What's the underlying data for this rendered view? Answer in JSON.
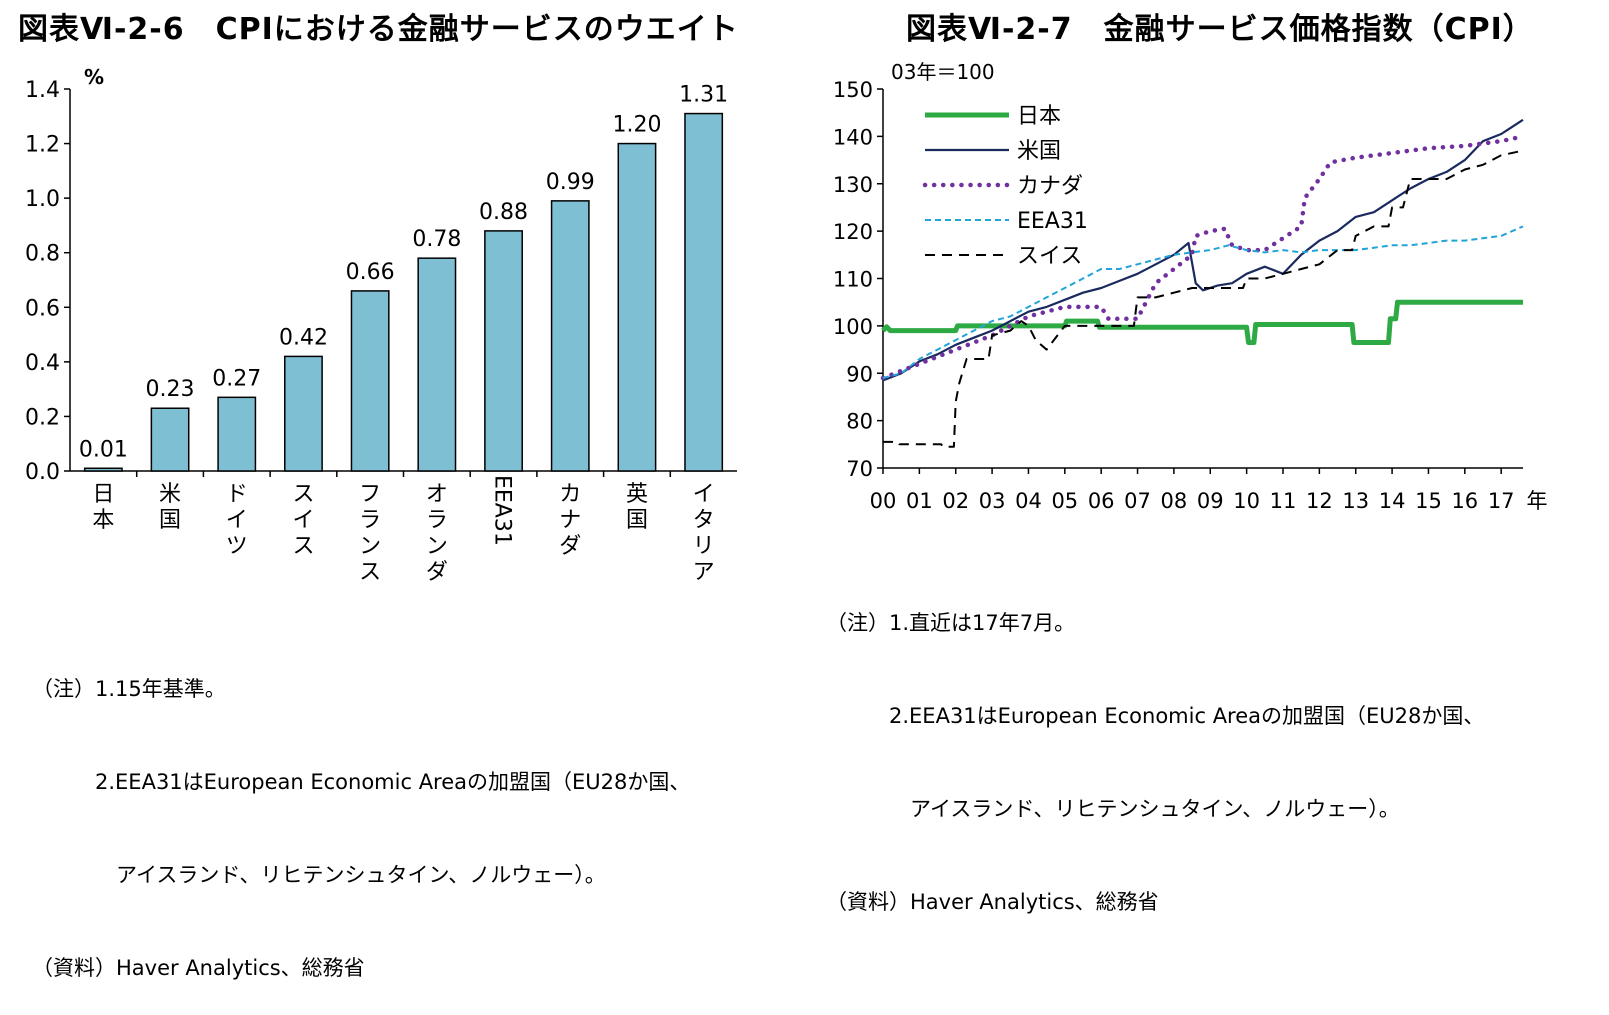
{
  "left": {
    "title": "図表Ⅵ-2-6　CPIにおける金融サービスのウエイト",
    "notes": [
      "（注）1.15年基準。",
      "　　　2.EEA31はEuropean Economic Areaの加盟国（EU28か国、",
      "　　　　アイスランド、リヒテンシュタイン、ノルウェー）。",
      "（資料）Haver Analytics、総務省"
    ]
  },
  "right": {
    "title": "図表Ⅵ-2-7　金融サービス価格指数（CPI）",
    "notes": [
      "（注）1.直近は17年7月。",
      "　　　2.EEA31はEuropean Economic Areaの加盟国（EU28か国、",
      "　　　　アイスランド、リヒテンシュタイン、ノルウェー）。",
      "（資料）Haver Analytics、総務省"
    ]
  },
  "chart_data": [
    {
      "type": "bar",
      "title": "CPIにおける金融サービスのウエイト",
      "ylabel": "%",
      "ylim": [
        0,
        1.4
      ],
      "yticks": [
        0.0,
        0.2,
        0.4,
        0.6,
        0.8,
        1.0,
        1.2,
        1.4
      ],
      "ytick_labels": [
        "0.0",
        "0.2",
        "0.4",
        "0.6",
        "0.8",
        "1.0",
        "1.2",
        "1.4"
      ],
      "categories": [
        "日本",
        "米国",
        "ドイツ",
        "スイス",
        "フランス",
        "オランダ",
        "EEA31",
        "カナダ",
        "英国",
        "イタリア"
      ],
      "values": [
        0.01,
        0.23,
        0.27,
        0.42,
        0.66,
        0.78,
        0.88,
        0.99,
        1.2,
        1.31
      ],
      "value_labels": [
        "0.01",
        "0.23",
        "0.27",
        "0.42",
        "0.66",
        "0.78",
        "0.88",
        "0.99",
        "1.20",
        "1.31"
      ],
      "bar_color": "#7fbfd4"
    },
    {
      "type": "line",
      "title": "金融サービス価格指数（CPI）",
      "ylabel": "03年＝100",
      "xlabel": "年",
      "ylim": [
        70,
        150
      ],
      "yticks": [
        70,
        80,
        90,
        100,
        110,
        120,
        130,
        140,
        150
      ],
      "xlim": [
        0,
        17.6
      ],
      "xticks": [
        0,
        1,
        2,
        3,
        4,
        5,
        6,
        7,
        8,
        9,
        10,
        11,
        12,
        13,
        14,
        15,
        16,
        17
      ],
      "xtick_labels": [
        "00",
        "01",
        "02",
        "03",
        "04",
        "05",
        "06",
        "07",
        "08",
        "09",
        "10",
        "11",
        "12",
        "13",
        "14",
        "15",
        "16",
        "17"
      ],
      "series": [
        {
          "name": "日本",
          "color": "#2eaa45",
          "style": "solid-thick",
          "points": [
            [
              0,
              99
            ],
            [
              0.1,
              99.8
            ],
            [
              0.2,
              99
            ],
            [
              2,
              99
            ],
            [
              2.05,
              100
            ],
            [
              3,
              100
            ],
            [
              5,
              100
            ],
            [
              5.05,
              101
            ],
            [
              5.9,
              101
            ],
            [
              5.95,
              99.7
            ],
            [
              10,
              99.7
            ],
            [
              10.05,
              96.5
            ],
            [
              10.2,
              96.5
            ],
            [
              10.25,
              100.3
            ],
            [
              12.9,
              100.3
            ],
            [
              12.95,
              96.5
            ],
            [
              13.9,
              96.5
            ],
            [
              13.95,
              101.5
            ],
            [
              14.1,
              101.5
            ],
            [
              14.15,
              105
            ],
            [
              17.6,
              105
            ]
          ]
        },
        {
          "name": "米国",
          "color": "#1a2a5e",
          "style": "solid",
          "points": [
            [
              0,
              88.5
            ],
            [
              0.5,
              90
            ],
            [
              1,
              92.5
            ],
            [
              1.5,
              94
            ],
            [
              2,
              96
            ],
            [
              2.5,
              97.5
            ],
            [
              3,
              99
            ],
            [
              3.5,
              101
            ],
            [
              4,
              103
            ],
            [
              4.5,
              104
            ],
            [
              5,
              105.5
            ],
            [
              5.5,
              107
            ],
            [
              6,
              108
            ],
            [
              6.5,
              109.5
            ],
            [
              7,
              111
            ],
            [
              7.5,
              113
            ],
            [
              8,
              115
            ],
            [
              8.4,
              117.5
            ],
            [
              8.6,
              109
            ],
            [
              8.8,
              107.5
            ],
            [
              9.2,
              108.5
            ],
            [
              9.6,
              109
            ],
            [
              10,
              111
            ],
            [
              10.5,
              112.5
            ],
            [
              11,
              111
            ],
            [
              11.5,
              115
            ],
            [
              12,
              118
            ],
            [
              12.5,
              120
            ],
            [
              13,
              123
            ],
            [
              13.5,
              124
            ],
            [
              14,
              126.5
            ],
            [
              14.5,
              129
            ],
            [
              15,
              131
            ],
            [
              15.5,
              132.5
            ],
            [
              16,
              135
            ],
            [
              16.5,
              139
            ],
            [
              17,
              140.5
            ],
            [
              17.3,
              142
            ],
            [
              17.6,
              143.5
            ]
          ]
        },
        {
          "name": "カナダ",
          "color": "#7030a0",
          "style": "dotted",
          "points": [
            [
              0,
              89
            ],
            [
              1,
              92
            ],
            [
              2,
              95
            ],
            [
              3,
              98
            ],
            [
              4,
              102
            ],
            [
              5,
              104
            ],
            [
              6,
              104
            ],
            [
              6.2,
              101.5
            ],
            [
              7,
              101.5
            ],
            [
              7.5,
              109
            ],
            [
              8,
              112
            ],
            [
              8.5,
              115
            ],
            [
              8.6,
              119
            ],
            [
              9,
              120
            ],
            [
              9.4,
              120.5
            ],
            [
              9.6,
              117
            ],
            [
              10,
              116
            ],
            [
              10.5,
              116
            ],
            [
              11,
              118.5
            ],
            [
              11.5,
              121
            ],
            [
              11.6,
              127
            ],
            [
              12,
              131
            ],
            [
              12.3,
              134.5
            ],
            [
              13,
              135.5
            ],
            [
              14,
              136.5
            ],
            [
              15,
              137.5
            ],
            [
              16,
              138
            ],
            [
              17,
              139
            ],
            [
              17.6,
              140
            ]
          ]
        },
        {
          "name": "EEA31",
          "color": "#22a4d9",
          "style": "dashed-fine",
          "points": [
            [
              0,
              89
            ],
            [
              0.5,
              90
            ],
            [
              1,
              93
            ],
            [
              1.5,
              95
            ],
            [
              2,
              97
            ],
            [
              2.5,
              99
            ],
            [
              3,
              101
            ],
            [
              3.5,
              102
            ],
            [
              4,
              104
            ],
            [
              4.5,
              106
            ],
            [
              5,
              108
            ],
            [
              5.5,
              110
            ],
            [
              6,
              112
            ],
            [
              6.5,
              112
            ],
            [
              7,
              113
            ],
            [
              7.5,
              114
            ],
            [
              8,
              115
            ],
            [
              8.5,
              115.5
            ],
            [
              9,
              116
            ],
            [
              9.5,
              117
            ],
            [
              10,
              116
            ],
            [
              10.5,
              115.5
            ],
            [
              11,
              116
            ],
            [
              11.5,
              115.5
            ],
            [
              12,
              116
            ],
            [
              12.5,
              116
            ],
            [
              13,
              116
            ],
            [
              13.5,
              116.5
            ],
            [
              14,
              117
            ],
            [
              14.5,
              117
            ],
            [
              15,
              117.5
            ],
            [
              15.5,
              118
            ],
            [
              16,
              118
            ],
            [
              16.5,
              118.5
            ],
            [
              17,
              119
            ],
            [
              17.6,
              121
            ]
          ]
        },
        {
          "name": "スイス",
          "color": "#000000",
          "style": "dashed",
          "points": [
            [
              0,
              75.5
            ],
            [
              0.4,
              75.5
            ],
            [
              0.45,
              75
            ],
            [
              1.6,
              75
            ],
            [
              1.65,
              74.5
            ],
            [
              1.95,
              74.5
            ],
            [
              2,
              84
            ],
            [
              2.1,
              88
            ],
            [
              2.3,
              93
            ],
            [
              2.9,
              93
            ],
            [
              3,
              98
            ],
            [
              3.5,
              99
            ],
            [
              3.8,
              101
            ],
            [
              4,
              100
            ],
            [
              4.2,
              97
            ],
            [
              4.5,
              95
            ],
            [
              5,
              100
            ],
            [
              5.5,
              100
            ],
            [
              6,
              100
            ],
            [
              6.5,
              100
            ],
            [
              6.9,
              100
            ],
            [
              7,
              106
            ],
            [
              7.5,
              106
            ],
            [
              8,
              107
            ],
            [
              8.5,
              108
            ],
            [
              9,
              108
            ],
            [
              9.5,
              108
            ],
            [
              9.9,
              108
            ],
            [
              10,
              110
            ],
            [
              10.5,
              110
            ],
            [
              11,
              111
            ],
            [
              11.5,
              112
            ],
            [
              12,
              113
            ],
            [
              12.5,
              116
            ],
            [
              12.9,
              116
            ],
            [
              13,
              119
            ],
            [
              13.5,
              121
            ],
            [
              13.9,
              121
            ],
            [
              14,
              125
            ],
            [
              14.3,
              125
            ],
            [
              14.5,
              131
            ],
            [
              15,
              131
            ],
            [
              15.5,
              131
            ],
            [
              16,
              133
            ],
            [
              16.5,
              134
            ],
            [
              17,
              136
            ],
            [
              17.6,
              137
            ]
          ]
        }
      ]
    }
  ]
}
